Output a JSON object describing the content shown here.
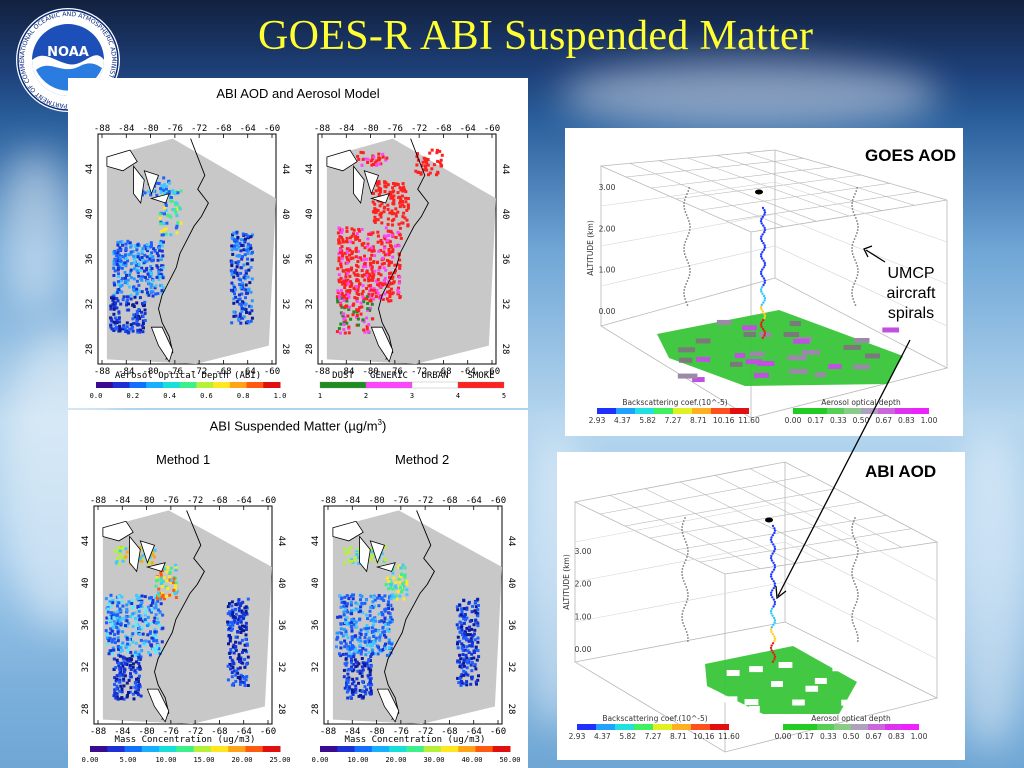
{
  "slide": {
    "title": "GOES-R ABI Suspended Matter",
    "logo_text": "NOAA",
    "logo_ring_text": "NATIONAL OCEANIC AND ATMOSPHERIC ADMINISTRATION · U.S. DEPARTMENT OF COMMERCE"
  },
  "top_panel": {
    "heading": "ABI AOD and Aerosol Model",
    "lon_ticks": [
      "-88",
      "-84",
      "-80",
      "-76",
      "-72",
      "-68",
      "-64",
      "-60"
    ],
    "lat_ticks": [
      "44",
      "40",
      "36",
      "32",
      "28"
    ],
    "left_map": {
      "caption": "Aerosol Optical Depth (ABI)",
      "colorbar_ticks": [
        "0.0",
        "0.2",
        "0.4",
        "0.6",
        "0.8",
        "1.0"
      ]
    },
    "right_map": {
      "categories": [
        "DUST",
        "GENERIC",
        "URBAN",
        "SMOKE"
      ],
      "category_numbers": [
        "1",
        "2",
        "3",
        "4",
        "5"
      ],
      "category_colors": [
        "#1e8c1e",
        "#ff44ff",
        "#ffffff",
        "#ff2020"
      ]
    }
  },
  "bottom_panel": {
    "heading": "ABI Suspended Matter (µg/m",
    "heading_sup": "3",
    "heading_close": ")",
    "method1": "Method 1",
    "method2": "Method 2",
    "left_map": {
      "caption": "Mass Concentration (ug/m3)",
      "colorbar_ticks": [
        "0.00",
        "5.00",
        "10.00",
        "15.00",
        "20.00",
        "25.00"
      ]
    },
    "right_map": {
      "caption": "Mass Concentration (ug/m3)",
      "colorbar_ticks": [
        "0.00",
        "10.00",
        "20.00",
        "30.00",
        "40.00",
        "50.00"
      ]
    }
  },
  "cube_top": {
    "label": "GOES AOD",
    "altitude_label": "ALTITUDE (km)",
    "alt_ticks": [
      "3.00",
      "2.00",
      "1.00",
      "0.00"
    ],
    "backscatter_label": "Backscattering coef.(10^-5)",
    "backscatter_ticks": [
      "2.93",
      "4.37",
      "5.82",
      "7.27",
      "8.71",
      "10.16",
      "11.60"
    ],
    "aod_label": "Aerosol optical depth",
    "aod_ticks": [
      "0.00",
      "0.17",
      "0.33",
      "0.50",
      "0.67",
      "0.83",
      "1.00"
    ]
  },
  "cube_bottom": {
    "label": "ABI AOD",
    "altitude_label": "ALTITUDE (km)",
    "alt_ticks": [
      "3.00",
      "2.00",
      "1.00",
      "0.00"
    ],
    "backscatter_label": "Backscattering coef.(10^-5)",
    "backscatter_ticks": [
      "2.93",
      "4.37",
      "5.82",
      "7.27",
      "8.71",
      "10.16",
      "11.60"
    ],
    "aod_label": "Aerosol optical depth",
    "aod_ticks": [
      "0.00",
      "0.17",
      "0.33",
      "0.50",
      "0.67",
      "0.83",
      "1.00"
    ]
  },
  "annotation": {
    "lines": [
      "UMCP",
      "aircraft",
      "spirals"
    ]
  }
}
